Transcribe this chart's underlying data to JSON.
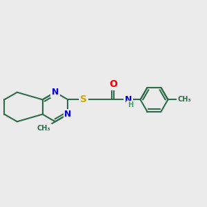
{
  "bg_color": "#ebebeb",
  "bond_color": "#2d6b4a",
  "bond_width": 1.5,
  "atom_colors": {
    "N": "#0000cc",
    "O": "#ff0000",
    "S": "#ccaa00",
    "H": "#4a9a6a",
    "C": "#2d6b4a"
  },
  "font_size": 9,
  "figsize": [
    3.0,
    3.0
  ],
  "dpi": 100,
  "xlim": [
    0,
    12
  ],
  "ylim": [
    0,
    12
  ]
}
